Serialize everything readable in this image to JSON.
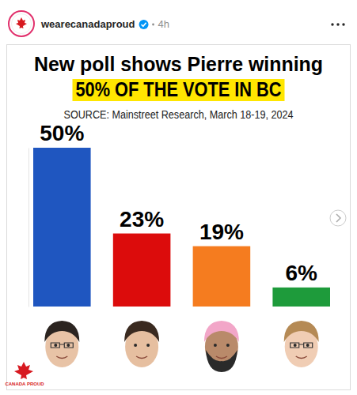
{
  "post": {
    "account": "wearecanadaproud",
    "time": "4h",
    "logo_text": "CANADA PROUD"
  },
  "chart_data": {
    "type": "bar",
    "title": "New poll shows Pierre winning",
    "subtitle": "50% OF THE VOTE IN BC",
    "source": "SOURCE: Mainstreet Research, March 18-19, 2024",
    "categories": [
      null,
      null,
      null,
      null
    ],
    "values": [
      50,
      23,
      19,
      6
    ],
    "value_labels": [
      "50%",
      "23%",
      "19%",
      "6%"
    ],
    "colors": [
      "#1f56c0",
      "#dc0c0c",
      "#f57c1f",
      "#1e9b3b"
    ],
    "ylim": [
      0,
      50
    ],
    "yticks": [],
    "data_labels": true,
    "tick_labels": false,
    "grid": false
  }
}
